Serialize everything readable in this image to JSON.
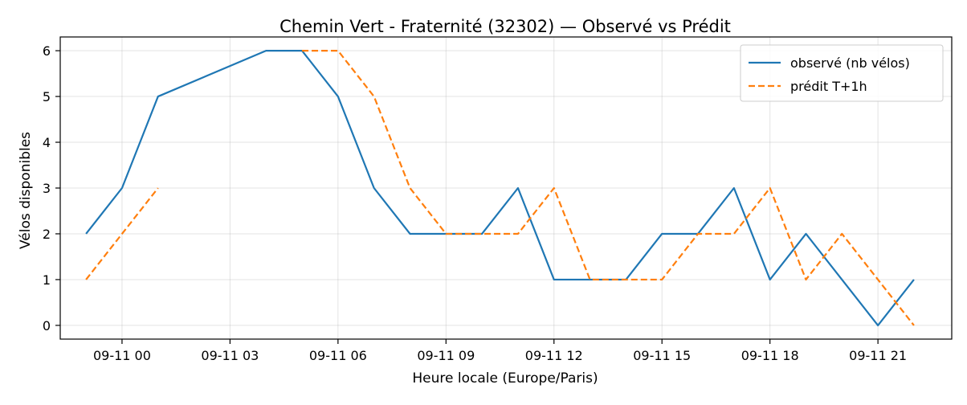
{
  "chart_data": {
    "type": "line",
    "title": "Chemin Vert - Fraternité (32302) — Observé vs Prédit",
    "xlabel": "Heure locale (Europe/Paris)",
    "ylabel": "Vélos disponibles",
    "ylim": [
      -0.3,
      6.3
    ],
    "yticks": [
      "0",
      "1",
      "2",
      "3",
      "4",
      "5",
      "6"
    ],
    "xlim": [
      "2025-09-10T22:17",
      "2025-09-11T23:03"
    ],
    "xticks": [
      {
        "x": "2025-09-11T00:00",
        "label": "09-11 00"
      },
      {
        "x": "2025-09-11T03:00",
        "label": "09-11 03"
      },
      {
        "x": "2025-09-11T06:00",
        "label": "09-11 06"
      },
      {
        "x": "2025-09-11T09:00",
        "label": "09-11 09"
      },
      {
        "x": "2025-09-11T12:00",
        "label": "09-11 12"
      },
      {
        "x": "2025-09-11T15:00",
        "label": "09-11 15"
      },
      {
        "x": "2025-09-11T18:00",
        "label": "09-11 18"
      },
      {
        "x": "2025-09-11T21:00",
        "label": "09-11 21"
      }
    ],
    "grid": true,
    "legend_position": "top-right",
    "series": [
      {
        "name": "observé (nb vélos)",
        "color": "#1f77b4",
        "dash": "solid",
        "points": [
          {
            "x": "2025-09-10T23:00",
            "y": 2
          },
          {
            "x": "2025-09-11T00:00",
            "y": 3
          },
          {
            "x": "2025-09-11T01:00",
            "y": 5
          },
          {
            "x": "2025-09-11T04:00",
            "y": 6
          },
          {
            "x": "2025-09-11T05:00",
            "y": 6
          },
          {
            "x": "2025-09-11T06:00",
            "y": 5
          },
          {
            "x": "2025-09-11T07:00",
            "y": 3
          },
          {
            "x": "2025-09-11T08:00",
            "y": 2
          },
          {
            "x": "2025-09-11T09:00",
            "y": 2
          },
          {
            "x": "2025-09-11T10:00",
            "y": 2
          },
          {
            "x": "2025-09-11T11:00",
            "y": 3
          },
          {
            "x": "2025-09-11T12:00",
            "y": 1
          },
          {
            "x": "2025-09-11T13:00",
            "y": 1
          },
          {
            "x": "2025-09-11T14:00",
            "y": 1
          },
          {
            "x": "2025-09-11T15:00",
            "y": 2
          },
          {
            "x": "2025-09-11T16:00",
            "y": 2
          },
          {
            "x": "2025-09-11T17:00",
            "y": 3
          },
          {
            "x": "2025-09-11T18:00",
            "y": 1
          },
          {
            "x": "2025-09-11T19:00",
            "y": 2
          },
          {
            "x": "2025-09-11T20:00",
            "y": 1
          },
          {
            "x": "2025-09-11T21:00",
            "y": 0
          },
          {
            "x": "2025-09-11T22:00",
            "y": 1
          }
        ]
      },
      {
        "name": "prédit T+1h",
        "color": "#ff7f0e",
        "dash": "dashed",
        "segments": [
          [
            {
              "x": "2025-09-10T23:00",
              "y": 1
            },
            {
              "x": "2025-09-11T00:00",
              "y": 2
            },
            {
              "x": "2025-09-11T01:00",
              "y": 3
            }
          ],
          [
            {
              "x": "2025-09-11T05:00",
              "y": 6
            },
            {
              "x": "2025-09-11T06:00",
              "y": 6
            },
            {
              "x": "2025-09-11T07:00",
              "y": 5
            },
            {
              "x": "2025-09-11T08:00",
              "y": 3
            },
            {
              "x": "2025-09-11T09:00",
              "y": 2
            },
            {
              "x": "2025-09-11T10:00",
              "y": 2
            },
            {
              "x": "2025-09-11T11:00",
              "y": 2
            },
            {
              "x": "2025-09-11T12:00",
              "y": 3
            },
            {
              "x": "2025-09-11T13:00",
              "y": 1
            },
            {
              "x": "2025-09-11T14:00",
              "y": 1
            },
            {
              "x": "2025-09-11T15:00",
              "y": 1
            },
            {
              "x": "2025-09-11T16:00",
              "y": 2
            },
            {
              "x": "2025-09-11T17:00",
              "y": 2
            },
            {
              "x": "2025-09-11T18:00",
              "y": 3
            },
            {
              "x": "2025-09-11T19:00",
              "y": 1
            },
            {
              "x": "2025-09-11T20:00",
              "y": 2
            },
            {
              "x": "2025-09-11T21:00",
              "y": 1
            },
            {
              "x": "2025-09-11T22:00",
              "y": 0
            }
          ]
        ]
      }
    ]
  }
}
